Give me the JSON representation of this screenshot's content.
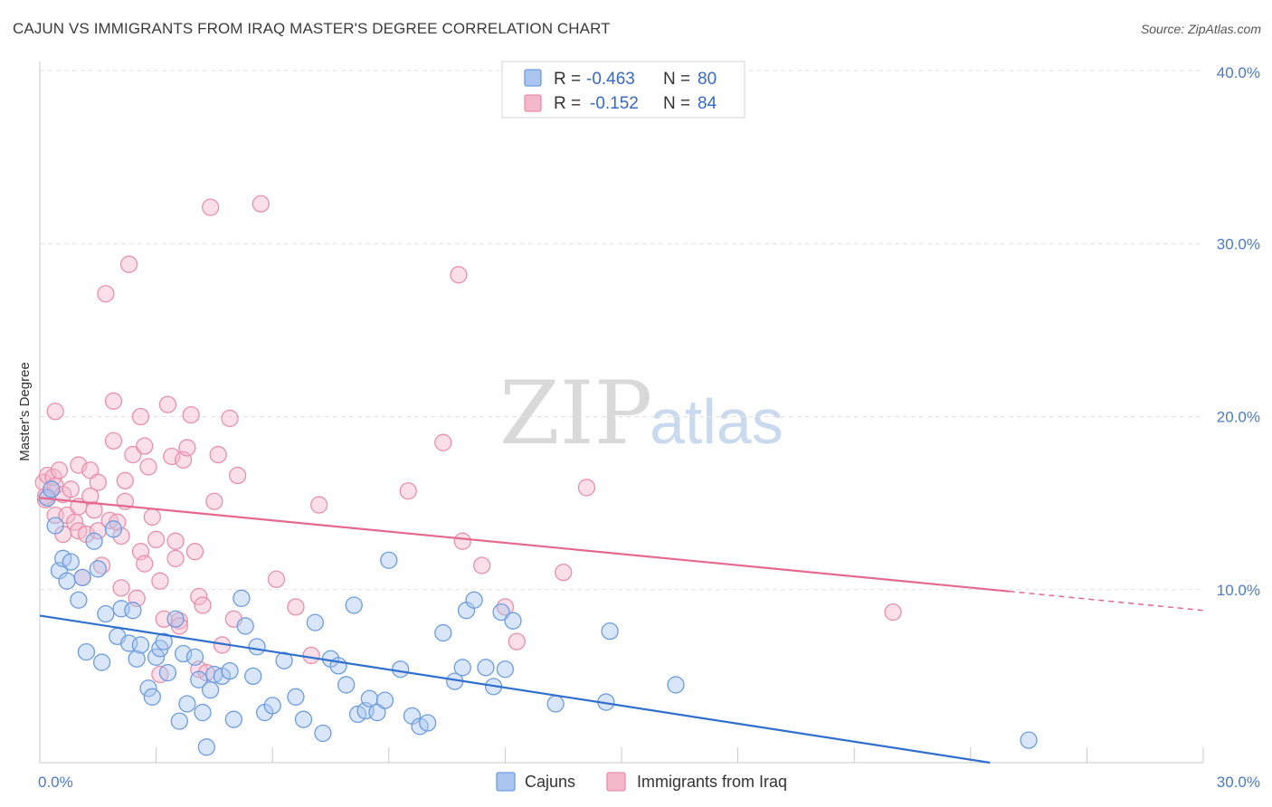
{
  "title": "CAJUN VS IMMIGRANTS FROM IRAQ MASTER'S DEGREE CORRELATION CHART",
  "source": "Source: ZipAtlas.com",
  "watermark": {
    "zip": "ZIP",
    "atlas": "atlas"
  },
  "colors": {
    "cajun_fill": "#aac6ef",
    "cajun_stroke": "#6d9ddf",
    "cajun_line": "#2f6fce",
    "iraq_fill": "#f4b8cb",
    "iraq_stroke": "#ea8fab",
    "iraq_line": "#e4688f",
    "grid": "#e2e2e2",
    "tick_text": "#4a7ac9"
  },
  "legend": {
    "r_label": "R =",
    "n_label": "N =",
    "cajun": {
      "r": "-0.463",
      "n": "80"
    },
    "iraq": {
      "r": "-0.152",
      "n": "84"
    }
  },
  "bottom_legend": [
    "Cajuns",
    "Immigrants from Iraq"
  ],
  "chart_data": {
    "type": "scatter",
    "title": "CAJUN VS IMMIGRANTS FROM IRAQ MASTER'S DEGREE CORRELATION CHART",
    "xlabel": "",
    "ylabel": "Master's Degree",
    "xlim": [
      0,
      30
    ],
    "ylim": [
      0,
      40
    ],
    "x_tick_labels": [
      "0.0%",
      "30.0%"
    ],
    "y_tick_labels": [
      "10.0%",
      "20.0%",
      "30.0%",
      "40.0%"
    ],
    "y_ticks": [
      10,
      20,
      30,
      40
    ],
    "series": [
      {
        "name": "Cajuns",
        "r": -0.463,
        "n": 80,
        "trend": {
          "x": [
            0,
            24.5
          ],
          "y": [
            8.5,
            0
          ]
        },
        "points": [
          [
            0.2,
            15.3
          ],
          [
            0.3,
            15.8
          ],
          [
            0.4,
            13.7
          ],
          [
            0.5,
            11.1
          ],
          [
            0.6,
            11.8
          ],
          [
            0.7,
            10.5
          ],
          [
            0.8,
            11.6
          ],
          [
            1.0,
            9.4
          ],
          [
            1.1,
            10.7
          ],
          [
            1.2,
            6.4
          ],
          [
            1.4,
            12.8
          ],
          [
            1.5,
            11.2
          ],
          [
            1.6,
            5.8
          ],
          [
            1.7,
            8.6
          ],
          [
            1.9,
            13.5
          ],
          [
            2.0,
            7.3
          ],
          [
            2.1,
            8.9
          ],
          [
            2.3,
            6.9
          ],
          [
            2.4,
            8.8
          ],
          [
            2.5,
            6.0
          ],
          [
            2.6,
            6.8
          ],
          [
            2.8,
            4.3
          ],
          [
            2.9,
            3.8
          ],
          [
            3.0,
            6.1
          ],
          [
            3.1,
            6.6
          ],
          [
            3.2,
            7.0
          ],
          [
            3.3,
            5.2
          ],
          [
            3.5,
            8.3
          ],
          [
            3.6,
            2.4
          ],
          [
            3.7,
            6.3
          ],
          [
            3.8,
            3.4
          ],
          [
            4.0,
            6.1
          ],
          [
            4.1,
            4.8
          ],
          [
            4.2,
            2.9
          ],
          [
            4.3,
            0.9
          ],
          [
            4.4,
            4.2
          ],
          [
            4.5,
            5.1
          ],
          [
            4.7,
            5.0
          ],
          [
            4.9,
            5.3
          ],
          [
            5.0,
            2.5
          ],
          [
            5.2,
            9.5
          ],
          [
            5.3,
            7.9
          ],
          [
            5.5,
            5.0
          ],
          [
            5.6,
            6.7
          ],
          [
            5.8,
            2.9
          ],
          [
            6.0,
            3.3
          ],
          [
            6.3,
            5.9
          ],
          [
            6.6,
            3.8
          ],
          [
            6.8,
            2.5
          ],
          [
            7.1,
            8.1
          ],
          [
            7.3,
            1.7
          ],
          [
            7.5,
            6.0
          ],
          [
            7.7,
            5.6
          ],
          [
            7.9,
            4.5
          ],
          [
            8.1,
            9.1
          ],
          [
            8.2,
            2.8
          ],
          [
            8.4,
            3.0
          ],
          [
            8.5,
            3.7
          ],
          [
            8.7,
            2.9
          ],
          [
            8.9,
            3.6
          ],
          [
            9.0,
            11.7
          ],
          [
            9.3,
            5.4
          ],
          [
            9.6,
            2.7
          ],
          [
            9.8,
            2.1
          ],
          [
            10.0,
            2.3
          ],
          [
            10.4,
            7.5
          ],
          [
            10.7,
            4.7
          ],
          [
            10.9,
            5.5
          ],
          [
            11.0,
            8.8
          ],
          [
            11.2,
            9.4
          ],
          [
            11.5,
            5.5
          ],
          [
            11.7,
            4.4
          ],
          [
            11.9,
            8.7
          ],
          [
            12.0,
            5.4
          ],
          [
            12.2,
            8.2
          ],
          [
            13.3,
            3.4
          ],
          [
            14.6,
            3.5
          ],
          [
            14.7,
            7.6
          ],
          [
            16.4,
            4.5
          ],
          [
            25.5,
            1.3
          ]
        ]
      },
      {
        "name": "Immigrants from Iraq",
        "r": -0.152,
        "n": 84,
        "trend": {
          "x": [
            0,
            25.0
          ],
          "y": [
            15.3,
            9.9
          ]
        },
        "trend_dashed": {
          "x": [
            25.0,
            30.0
          ],
          "y": [
            9.9,
            8.8
          ]
        },
        "points": [
          [
            0.1,
            16.2
          ],
          [
            0.15,
            15.2
          ],
          [
            0.2,
            16.6
          ],
          [
            0.3,
            15.8
          ],
          [
            0.35,
            16.5
          ],
          [
            0.4,
            16.0
          ],
          [
            0.4,
            14.3
          ],
          [
            0.4,
            20.3
          ],
          [
            0.5,
            16.9
          ],
          [
            0.6,
            15.5
          ],
          [
            0.6,
            13.2
          ],
          [
            0.7,
            14.3
          ],
          [
            0.8,
            15.8
          ],
          [
            0.9,
            13.9
          ],
          [
            1.0,
            13.4
          ],
          [
            1.0,
            17.2
          ],
          [
            1.0,
            14.8
          ],
          [
            1.1,
            10.7
          ],
          [
            1.2,
            13.2
          ],
          [
            1.3,
            16.9
          ],
          [
            1.3,
            15.4
          ],
          [
            1.4,
            14.6
          ],
          [
            1.5,
            13.4
          ],
          [
            1.5,
            16.2
          ],
          [
            1.6,
            11.4
          ],
          [
            1.7,
            27.1
          ],
          [
            1.8,
            14.0
          ],
          [
            1.9,
            20.9
          ],
          [
            1.9,
            18.6
          ],
          [
            2.0,
            13.9
          ],
          [
            2.1,
            10.1
          ],
          [
            2.1,
            13.1
          ],
          [
            2.2,
            16.3
          ],
          [
            2.2,
            15.1
          ],
          [
            2.3,
            28.8
          ],
          [
            2.4,
            17.8
          ],
          [
            2.5,
            9.5
          ],
          [
            2.6,
            12.2
          ],
          [
            2.6,
            20.0
          ],
          [
            2.7,
            18.3
          ],
          [
            2.7,
            11.5
          ],
          [
            2.8,
            17.1
          ],
          [
            2.9,
            14.2
          ],
          [
            3.0,
            12.9
          ],
          [
            3.1,
            10.5
          ],
          [
            3.1,
            5.1
          ],
          [
            3.2,
            8.3
          ],
          [
            3.3,
            20.7
          ],
          [
            3.4,
            17.7
          ],
          [
            3.5,
            11.8
          ],
          [
            3.5,
            12.8
          ],
          [
            3.6,
            8.2
          ],
          [
            3.6,
            7.9
          ],
          [
            3.7,
            17.5
          ],
          [
            3.8,
            18.2
          ],
          [
            3.9,
            20.1
          ],
          [
            4.0,
            12.2
          ],
          [
            4.1,
            9.6
          ],
          [
            4.1,
            5.4
          ],
          [
            4.2,
            9.1
          ],
          [
            4.3,
            5.2
          ],
          [
            4.4,
            32.1
          ],
          [
            4.5,
            15.1
          ],
          [
            4.6,
            17.8
          ],
          [
            4.7,
            6.8
          ],
          [
            4.9,
            19.9
          ],
          [
            5.0,
            8.3
          ],
          [
            5.1,
            16.6
          ],
          [
            5.7,
            32.3
          ],
          [
            6.1,
            10.6
          ],
          [
            6.6,
            9.0
          ],
          [
            7.0,
            6.2
          ],
          [
            7.2,
            14.9
          ],
          [
            9.5,
            15.7
          ],
          [
            10.4,
            18.5
          ],
          [
            10.8,
            28.2
          ],
          [
            10.9,
            12.8
          ],
          [
            11.4,
            11.4
          ],
          [
            12.0,
            9.0
          ],
          [
            12.3,
            7.0
          ],
          [
            13.5,
            11.0
          ],
          [
            14.1,
            15.9
          ],
          [
            22.0,
            8.7
          ],
          [
            0.15,
            15.4
          ]
        ]
      }
    ]
  }
}
